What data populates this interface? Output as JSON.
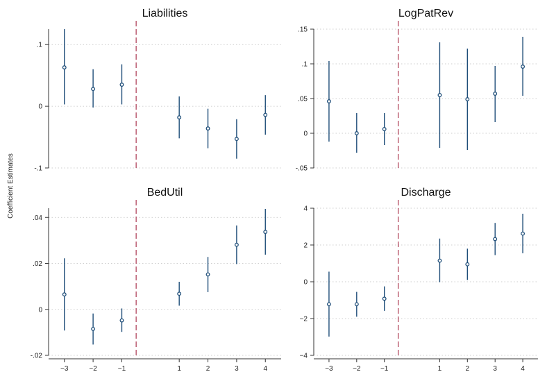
{
  "figure": {
    "ylabel": "Coefficient Estimates",
    "event_line": {
      "x": -0.5,
      "color": "#b2475e"
    },
    "marker_color": "#1f4e79"
  },
  "chart_data": [
    {
      "type": "scatter",
      "title": "Liabilities",
      "xlabel": "",
      "ylabel": "",
      "ylim": [
        -0.1,
        0.125
      ],
      "yticks": [
        -0.1,
        0,
        0.1
      ],
      "ytick_labels": [
        "-.1",
        "0",
        ".1"
      ],
      "xticks": [
        -3,
        -2,
        -1,
        1,
        2,
        3,
        4
      ],
      "xtick_labels": [
        "−3",
        "−2",
        "−1",
        "1",
        "2",
        "3",
        "4"
      ],
      "show_xtick_labels": false,
      "grid": true,
      "series": [
        {
          "x": [
            -3,
            -2,
            -1,
            1,
            2,
            3,
            4
          ],
          "y": [
            0.063,
            0.028,
            0.035,
            -0.018,
            -0.036,
            -0.053,
            -0.014
          ],
          "ci_low": [
            0.003,
            -0.002,
            0.003,
            -0.052,
            -0.068,
            -0.085,
            -0.046
          ],
          "ci_high": [
            0.125,
            0.06,
            0.068,
            0.016,
            -0.004,
            -0.021,
            0.018
          ]
        }
      ]
    },
    {
      "type": "scatter",
      "title": "LogPatRev",
      "xlabel": "",
      "ylabel": "",
      "ylim": [
        -0.05,
        0.15
      ],
      "yticks": [
        -0.05,
        0,
        0.05,
        0.1,
        0.15
      ],
      "ytick_labels": [
        "-.05",
        "0",
        ".05",
        ".1",
        ".15"
      ],
      "xticks": [
        -3,
        -2,
        -1,
        1,
        2,
        3,
        4
      ],
      "xtick_labels": [
        "−3",
        "−2",
        "−1",
        "1",
        "2",
        "3",
        "4"
      ],
      "show_xtick_labels": false,
      "grid": true,
      "series": [
        {
          "x": [
            -3,
            -2,
            -1,
            1,
            2,
            3,
            4
          ],
          "y": [
            0.046,
            0.0,
            0.006,
            0.055,
            0.049,
            0.057,
            0.096
          ],
          "ci_low": [
            -0.012,
            -0.028,
            -0.017,
            -0.021,
            -0.024,
            0.016,
            0.054
          ],
          "ci_high": [
            0.104,
            0.029,
            0.029,
            0.131,
            0.122,
            0.097,
            0.139
          ]
        }
      ]
    },
    {
      "type": "scatter",
      "title": "BedUtil",
      "xlabel": "",
      "ylabel": "",
      "ylim": [
        -0.02,
        0.044
      ],
      "yticks": [
        -0.02,
        0,
        0.02,
        0.04
      ],
      "ytick_labels": [
        "-.02",
        "0",
        ".02",
        ".04"
      ],
      "xticks": [
        -3,
        -2,
        -1,
        1,
        2,
        3,
        4
      ],
      "xtick_labels": [
        "−3",
        "−2",
        "−1",
        "1",
        "2",
        "3",
        "4"
      ],
      "show_xtick_labels": true,
      "grid": true,
      "series": [
        {
          "x": [
            -3,
            -2,
            -1,
            1,
            2,
            3,
            4
          ],
          "y": [
            0.0065,
            -0.0085,
            -0.0048,
            0.0068,
            0.0152,
            0.0281,
            0.0337
          ],
          "ci_low": [
            -0.0092,
            -0.0153,
            -0.0098,
            0.0016,
            0.0075,
            0.0197,
            0.0238
          ],
          "ci_high": [
            0.0222,
            -0.0018,
            0.0004,
            0.012,
            0.0228,
            0.0365,
            0.0437
          ]
        }
      ]
    },
    {
      "type": "scatter",
      "title": "Discharge",
      "xlabel": "",
      "ylabel": "",
      "ylim": [
        -4,
        4
      ],
      "yticks": [
        -4,
        -2,
        0,
        2,
        4
      ],
      "ytick_labels": [
        "−4",
        "−2",
        "0",
        "2",
        "4"
      ],
      "xticks": [
        -3,
        -2,
        -1,
        1,
        2,
        3,
        4
      ],
      "xtick_labels": [
        "−3",
        "−2",
        "−1",
        "1",
        "2",
        "3",
        "4"
      ],
      "show_xtick_labels": true,
      "grid": true,
      "series": [
        {
          "x": [
            -3,
            -2,
            -1,
            1,
            2,
            3,
            4
          ],
          "y": [
            -1.22,
            -1.22,
            -0.92,
            1.15,
            0.95,
            2.32,
            2.62
          ],
          "ci_low": [
            -2.98,
            -1.9,
            -1.58,
            -0.02,
            0.1,
            1.45,
            1.55
          ],
          "ci_high": [
            0.55,
            -0.55,
            -0.25,
            2.35,
            1.8,
            3.2,
            3.7
          ]
        }
      ]
    }
  ]
}
